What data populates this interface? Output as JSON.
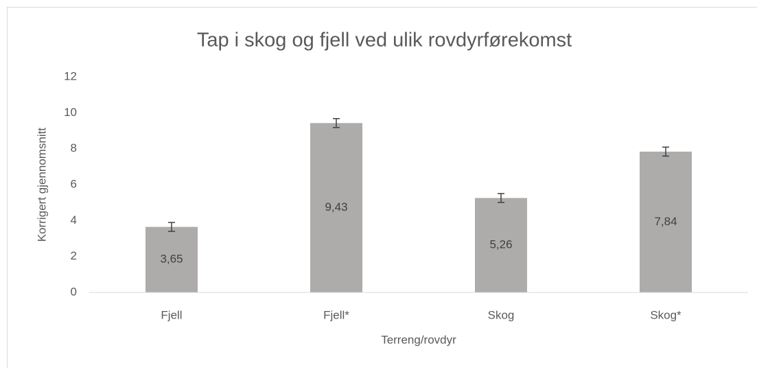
{
  "chart_data": {
    "type": "bar",
    "title": "Tap i skog og fjell ved ulik rovdyrførekomst",
    "xlabel": "Terreng/rovdyr",
    "ylabel": "Korrigert gjennomsnitt",
    "categories": [
      "Fjell",
      "Fjell*",
      "Skog",
      "Skog*"
    ],
    "values": [
      3.65,
      9.43,
      5.26,
      7.84
    ],
    "value_labels": [
      "3,65",
      "9,43",
      "5,26",
      "7,84"
    ],
    "errors": [
      0.25,
      0.25,
      0.25,
      0.25
    ],
    "color": "#aeabab",
    "ylim": [
      0,
      12
    ],
    "yticks": [
      0,
      2,
      4,
      6,
      8,
      10,
      12
    ],
    "grid": false
  }
}
